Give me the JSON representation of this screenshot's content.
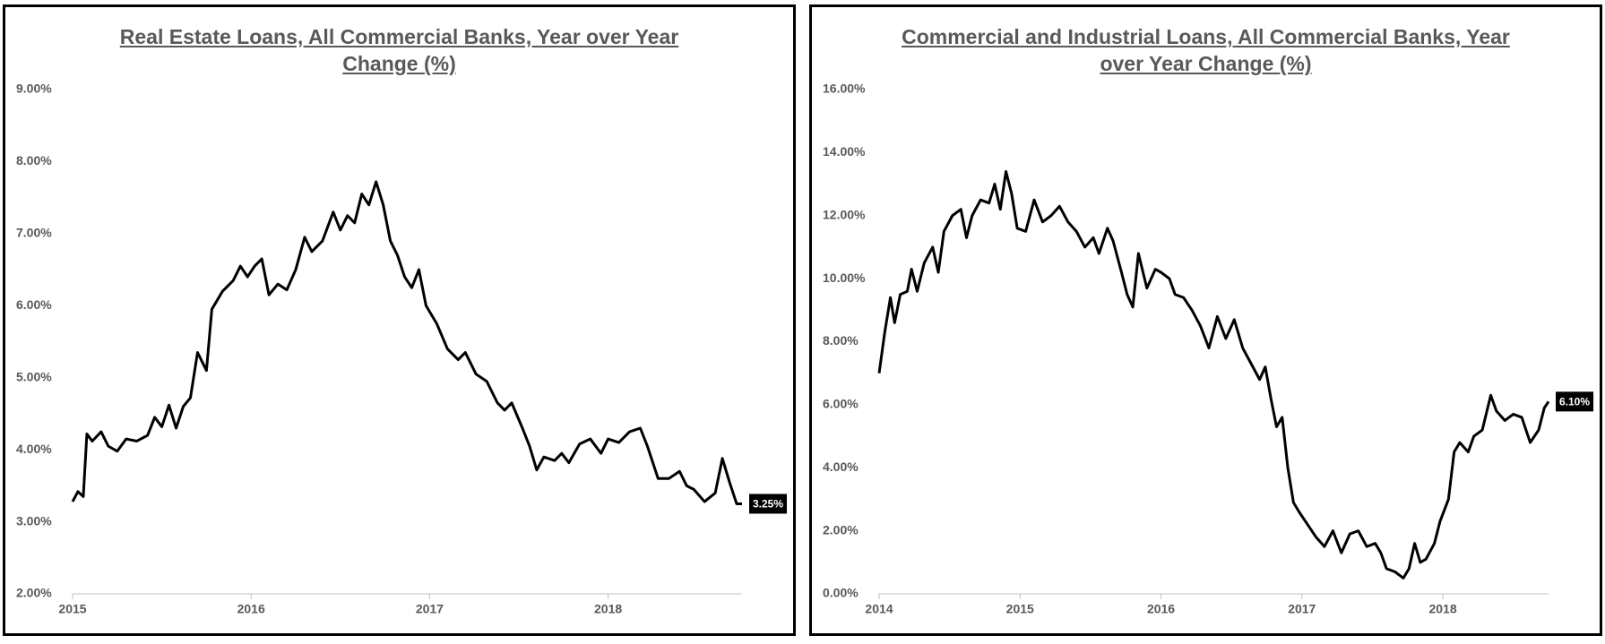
{
  "chart_data": [
    {
      "type": "line",
      "title": "Real Estate Loans, All Commercial Banks, Year over Year Change (%)",
      "x": [
        2015.0,
        2015.03,
        2015.06,
        2015.08,
        2015.11,
        2015.16,
        2015.2,
        2015.25,
        2015.3,
        2015.36,
        2015.42,
        2015.46,
        2015.5,
        2015.54,
        2015.58,
        2015.62,
        2015.66,
        2015.7,
        2015.75,
        2015.78,
        2015.84,
        2015.9,
        2015.94,
        2015.98,
        2016.02,
        2016.06,
        2016.1,
        2016.15,
        2016.2,
        2016.25,
        2016.3,
        2016.34,
        2016.4,
        2016.46,
        2016.5,
        2016.54,
        2016.58,
        2016.62,
        2016.66,
        2016.7,
        2016.74,
        2016.78,
        2016.82,
        2016.86,
        2016.9,
        2016.94,
        2016.98,
        2017.04,
        2017.1,
        2017.16,
        2017.2,
        2017.26,
        2017.32,
        2017.38,
        2017.42,
        2017.46,
        2017.52,
        2017.56,
        2017.6,
        2017.64,
        2017.7,
        2017.74,
        2017.78,
        2017.84,
        2017.9,
        2017.96,
        2018.0,
        2018.06,
        2018.12,
        2018.18,
        2018.22,
        2018.28,
        2018.34,
        2018.4,
        2018.44,
        2018.48,
        2018.54,
        2018.6,
        2018.64,
        2018.68,
        2018.72,
        2018.75
      ],
      "values": [
        3.28,
        3.42,
        3.35,
        4.22,
        4.12,
        4.25,
        4.05,
        3.98,
        4.15,
        4.12,
        4.2,
        4.45,
        4.32,
        4.62,
        4.3,
        4.6,
        4.72,
        5.35,
        5.1,
        5.95,
        6.2,
        6.35,
        6.55,
        6.4,
        6.55,
        6.65,
        6.15,
        6.3,
        6.22,
        6.5,
        6.95,
        6.75,
        6.9,
        7.3,
        7.05,
        7.25,
        7.15,
        7.55,
        7.4,
        7.72,
        7.4,
        6.9,
        6.7,
        6.4,
        6.25,
        6.5,
        6.0,
        5.75,
        5.4,
        5.25,
        5.35,
        5.05,
        4.95,
        4.65,
        4.55,
        4.65,
        4.3,
        4.05,
        3.72,
        3.9,
        3.85,
        3.95,
        3.82,
        4.08,
        4.15,
        3.95,
        4.15,
        4.1,
        4.25,
        4.3,
        4.05,
        3.6,
        3.6,
        3.7,
        3.5,
        3.45,
        3.28,
        3.4,
        3.88,
        3.55,
        3.25,
        3.25
      ],
      "value_labels": [
        null,
        null,
        null,
        null,
        null,
        null,
        null,
        null,
        null,
        null,
        null,
        null,
        null,
        null,
        null,
        null,
        null,
        null,
        null,
        null,
        null,
        null,
        null,
        null,
        null,
        null,
        null,
        null,
        null,
        null,
        null,
        null,
        null,
        null,
        null,
        null,
        null,
        null,
        null,
        null,
        null,
        null,
        null,
        null,
        null,
        null,
        null,
        null,
        null,
        null,
        null,
        null,
        null,
        null,
        null,
        null,
        null,
        null,
        null,
        null,
        null,
        null,
        null,
        null,
        null,
        null,
        null,
        null,
        null,
        null,
        null,
        null,
        null,
        null,
        null,
        null,
        null,
        null,
        null,
        null,
        null,
        "3.25%"
      ],
      "color": "#000000",
      "xlim": [
        2015,
        2018.75
      ],
      "xticks": [
        2015,
        2016,
        2017,
        2018
      ],
      "ylim": [
        2,
        9
      ],
      "yticks": [
        {
          "value": 2,
          "label": "2.00%"
        },
        {
          "value": 3,
          "label": "3.00%"
        },
        {
          "value": 4,
          "label": "4.00%"
        },
        {
          "value": 5,
          "label": "5.00%"
        },
        {
          "value": 6,
          "label": "6.00%"
        },
        {
          "value": 7,
          "label": "7.00%"
        },
        {
          "value": 8,
          "label": "8.00%"
        },
        {
          "value": 9,
          "label": "9.00%"
        }
      ]
    },
    {
      "type": "line",
      "title": "Commercial and Industrial Loans, All Commercial Banks, Year over Year Change (%)",
      "x": [
        2014.0,
        2014.04,
        2014.08,
        2014.11,
        2014.15,
        2014.2,
        2014.23,
        2014.27,
        2014.32,
        2014.38,
        2014.42,
        2014.46,
        2014.52,
        2014.58,
        2014.62,
        2014.66,
        2014.72,
        2014.78,
        2014.82,
        2014.86,
        2014.9,
        2014.94,
        2014.98,
        2015.04,
        2015.1,
        2015.16,
        2015.22,
        2015.28,
        2015.34,
        2015.4,
        2015.46,
        2015.52,
        2015.56,
        2015.62,
        2015.66,
        2015.72,
        2015.76,
        2015.8,
        2015.84,
        2015.9,
        2015.96,
        2016.0,
        2016.06,
        2016.1,
        2016.16,
        2016.22,
        2016.28,
        2016.34,
        2016.4,
        2016.46,
        2016.52,
        2016.58,
        2016.64,
        2016.7,
        2016.74,
        2016.78,
        2016.82,
        2016.86,
        2016.9,
        2016.94,
        2016.98,
        2017.04,
        2017.1,
        2017.16,
        2017.22,
        2017.28,
        2017.34,
        2017.4,
        2017.46,
        2017.52,
        2017.56,
        2017.6,
        2017.66,
        2017.72,
        2017.76,
        2017.8,
        2017.84,
        2017.88,
        2017.94,
        2017.98,
        2018.04,
        2018.08,
        2018.12,
        2018.18,
        2018.22,
        2018.28,
        2018.34,
        2018.38,
        2018.44,
        2018.5,
        2018.56,
        2018.62,
        2018.68,
        2018.72,
        2018.75
      ],
      "values": [
        7.0,
        8.3,
        9.4,
        8.6,
        9.5,
        9.6,
        10.3,
        9.6,
        10.5,
        11.0,
        10.2,
        11.5,
        12.0,
        12.2,
        11.3,
        12.0,
        12.5,
        12.4,
        13.0,
        12.2,
        13.4,
        12.7,
        11.6,
        11.5,
        12.5,
        11.8,
        12.0,
        12.3,
        11.8,
        11.5,
        11.0,
        11.3,
        10.8,
        11.6,
        11.2,
        10.2,
        9.5,
        9.1,
        10.8,
        9.7,
        10.3,
        10.2,
        10.0,
        9.5,
        9.4,
        9.0,
        8.5,
        7.8,
        8.8,
        8.1,
        8.7,
        7.8,
        7.3,
        6.8,
        7.2,
        6.2,
        5.3,
        5.6,
        4.0,
        2.9,
        2.6,
        2.2,
        1.8,
        1.5,
        2.0,
        1.3,
        1.9,
        2.0,
        1.5,
        1.6,
        1.3,
        0.8,
        0.7,
        0.5,
        0.8,
        1.6,
        1.0,
        1.1,
        1.6,
        2.3,
        3.0,
        4.5,
        4.8,
        4.5,
        5.0,
        5.2,
        6.3,
        5.8,
        5.5,
        5.7,
        5.6,
        4.8,
        5.2,
        5.9,
        6.1
      ],
      "value_labels": [
        null,
        null,
        null,
        null,
        null,
        null,
        null,
        null,
        null,
        null,
        null,
        null,
        null,
        null,
        null,
        null,
        null,
        null,
        null,
        null,
        null,
        null,
        null,
        null,
        null,
        null,
        null,
        null,
        null,
        null,
        null,
        null,
        null,
        null,
        null,
        null,
        null,
        null,
        null,
        null,
        null,
        null,
        null,
        null,
        null,
        null,
        null,
        null,
        null,
        null,
        null,
        null,
        null,
        null,
        null,
        null,
        null,
        null,
        null,
        null,
        null,
        null,
        null,
        null,
        null,
        null,
        null,
        null,
        null,
        null,
        null,
        null,
        null,
        null,
        null,
        null,
        null,
        null,
        null,
        null,
        null,
        null,
        null,
        null,
        null,
        null,
        null,
        null,
        null,
        null,
        null,
        null,
        null,
        null,
        "6.10%"
      ],
      "color": "#000000",
      "xlim": [
        2014,
        2018.75
      ],
      "xticks": [
        2014,
        2015,
        2016,
        2017,
        2018
      ],
      "ylim": [
        0,
        16
      ],
      "yticks": [
        {
          "value": 0,
          "label": "0.00%"
        },
        {
          "value": 2,
          "label": "2.00%"
        },
        {
          "value": 4,
          "label": "4.00%"
        },
        {
          "value": 6,
          "label": "6.00%"
        },
        {
          "value": 8,
          "label": "8.00%"
        },
        {
          "value": 10,
          "label": "10.00%"
        },
        {
          "value": 12,
          "label": "12.00%"
        },
        {
          "value": 14,
          "label": "14.00%"
        },
        {
          "value": 16,
          "label": "16.00%"
        }
      ]
    }
  ]
}
